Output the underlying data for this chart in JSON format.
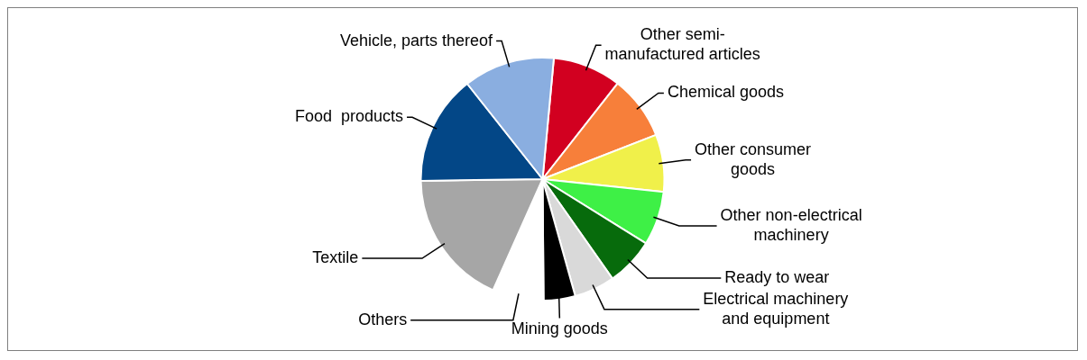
{
  "chart_data": {
    "type": "pie",
    "categories": [
      "Other semi-manufactured articles",
      "Chemical goods",
      "Other consumer goods",
      "Other non-electrical machinery",
      "Ready to wear",
      "Electrical machinery and equipment",
      "Mining goods",
      "Others",
      "Textile",
      "Food  products",
      "Vehicle, parts thereof"
    ],
    "values": [
      9.1,
      8.5,
      7.6,
      7.2,
      6.4,
      5.4,
      4.2,
      6.8,
      18.1,
      14.6,
      12.1
    ],
    "colors": [
      "#d20020",
      "#f77f3a",
      "#f0f04a",
      "#3ef046",
      "#076b0c",
      "#d9d9d9",
      "#000000",
      "#ffffff",
      "#a6a6a6",
      "#034787",
      "#8aaee0"
    ]
  }
}
